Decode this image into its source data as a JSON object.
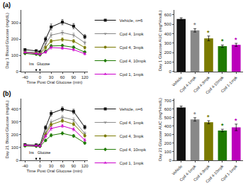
{
  "chart_data": [
    {
      "type": "line",
      "x_label": "Time Post Oral Glucose (min)",
      "y_label": "Day 1 Blood Glucose (mg/dL)",
      "x": [
        -40,
        -10,
        0,
        15,
        30,
        60,
        90,
        120
      ],
      "series": [
        {
          "name": "Vehicle, n=6",
          "color": "#111111",
          "marker": "square",
          "values": [
            135,
            128,
            122,
            200,
            275,
            305,
            280,
            215
          ],
          "errors": [
            6,
            6,
            6,
            14,
            18,
            16,
            16,
            13
          ]
        },
        {
          "name": "Cpd 4, 1mpk",
          "color": "#888888",
          "marker": "triangle-down",
          "values": [
            122,
            118,
            112,
            170,
            225,
            240,
            225,
            178
          ],
          "errors": [
            5,
            5,
            5,
            11,
            13,
            13,
            12,
            10
          ]
        },
        {
          "name": "Cpd 4, 3mpk",
          "color": "#7a7a00",
          "marker": "circle",
          "values": [
            118,
            113,
            108,
            148,
            188,
            198,
            188,
            148
          ],
          "errors": [
            5,
            5,
            5,
            9,
            11,
            11,
            10,
            9
          ]
        },
        {
          "name": "Cpd 4, 10mpk",
          "color": "#1e7a00",
          "marker": "diamond",
          "values": [
            112,
            107,
            103,
            125,
            158,
            160,
            150,
            120
          ],
          "errors": [
            4,
            4,
            4,
            7,
            9,
            9,
            8,
            7
          ]
        },
        {
          "name": "Cpd 1, 1mpk",
          "color": "#cc00cc",
          "marker": "triangle-up",
          "values": [
            118,
            112,
            107,
            120,
            148,
            145,
            135,
            110
          ],
          "errors": [
            4,
            4,
            4,
            7,
            9,
            8,
            8,
            7
          ]
        }
      ],
      "xlim": [
        -50,
        128
      ],
      "xticks": [
        -40,
        0,
        30,
        60,
        90,
        120
      ],
      "ylim": [
        0,
        380
      ],
      "yticks": [
        0,
        100,
        200,
        300
      ],
      "grid": false,
      "legend": "right",
      "annotations": [
        {
          "text": "(a)",
          "position": "top left"
        },
        {
          "text": "Ins",
          "x": -22,
          "y": 24
        },
        {
          "text": "Glucose",
          "x": 10,
          "y": 24
        }
      ],
      "arrows": [
        {
          "x": -10,
          "y": 2,
          "y_from": 22
        },
        {
          "x": 0,
          "y": 2,
          "y_from": 22
        }
      ]
    },
    {
      "type": "bar",
      "y_label": "Day 1 Glucose AUC (mg*HrxdL)",
      "categories": [
        "Vehicle",
        "Cpd 4-1mpk",
        "Cpd 4-3mpk",
        "Cpd 4-10mpk",
        "Cpd 1-1mpk"
      ],
      "values": [
        555,
        435,
        350,
        268,
        282
      ],
      "errors": [
        12,
        18,
        25,
        12,
        16
      ],
      "colors": [
        "#111111",
        "#888888",
        "#7a7a00",
        "#1e7a00",
        "#bb00bb"
      ],
      "ylim": [
        0,
        650
      ],
      "yticks": [
        0,
        100,
        200,
        300,
        400,
        500,
        600
      ],
      "grid": false,
      "annotations": [
        {
          "text": "*",
          "category": "Cpd 4-1mpk",
          "color": "#888888"
        },
        {
          "text": "*",
          "category": "Cpd 4-3mpk",
          "color": "#7a7a00"
        },
        {
          "text": "*",
          "category": "Cpd 4-10mpk",
          "color": "#1e7a00"
        },
        {
          "text": "*",
          "category": "Cpd 1-1mpk",
          "color": "#bb00bb"
        }
      ]
    },
    {
      "type": "line",
      "x_label": "Time Post Oral Glucose (min)",
      "y_label": "Day 21 Blood Glucose (mg/dL)",
      "x": [
        -40,
        -10,
        0,
        15,
        30,
        60,
        90,
        120
      ],
      "series": [
        {
          "name": "Vehicle, n=6",
          "color": "#111111",
          "marker": "square",
          "values": [
            122,
            120,
            118,
            255,
            365,
            398,
            380,
            258
          ],
          "errors": [
            6,
            6,
            6,
            16,
            20,
            18,
            18,
            15
          ]
        },
        {
          "name": "Cpd 4, 1mpk",
          "color": "#888888",
          "marker": "triangle-down",
          "values": [
            118,
            115,
            112,
            218,
            298,
            335,
            315,
            208
          ],
          "errors": [
            5,
            5,
            5,
            13,
            16,
            15,
            15,
            13
          ]
        },
        {
          "name": "Cpd 4, 3mpk",
          "color": "#7a7a00",
          "marker": "circle",
          "values": [
            115,
            112,
            110,
            202,
            278,
            308,
            282,
            192
          ],
          "errors": [
            5,
            5,
            5,
            11,
            14,
            13,
            13,
            11
          ]
        },
        {
          "name": "Cpd 4, 10mpk",
          "color": "#1e7a00",
          "marker": "diamond",
          "values": [
            112,
            110,
            108,
            155,
            195,
            210,
            190,
            135
          ],
          "errors": [
            4,
            4,
            4,
            9,
            12,
            11,
            11,
            9
          ]
        },
        {
          "name": "Cpd 1, 1mpk",
          "color": "#cc00cc",
          "marker": "triangle-up",
          "values": [
            118,
            115,
            110,
            188,
            248,
            268,
            242,
            158
          ],
          "errors": [
            4,
            4,
            4,
            11,
            14,
            12,
            12,
            10
          ]
        }
      ],
      "xlim": [
        -50,
        128
      ],
      "xticks": [
        -40,
        0,
        30,
        60,
        90,
        120
      ],
      "ylim": [
        0,
        480
      ],
      "yticks": [
        0,
        100,
        200,
        300,
        400
      ],
      "grid": false,
      "legend": "right",
      "annotations": [
        {
          "text": "(b)",
          "position": "top left"
        },
        {
          "text": "Ins",
          "x": -22,
          "y": 32
        },
        {
          "text": "Glucose",
          "x": 12,
          "y": 32
        }
      ],
      "arrows": [
        {
          "x": -10,
          "y": 2,
          "y_from": 28
        },
        {
          "x": 0,
          "y": 2,
          "y_from": 28
        }
      ]
    },
    {
      "type": "bar",
      "y_label": "Day 21 Glucose AUC (mg*HrxdL)",
      "categories": [
        "Vehicle",
        "Cpd 4-1mpk",
        "Cpd 4-3mpk",
        "Cpd 4-10mpk",
        "Cpd 1-1mpk"
      ],
      "values": [
        618,
        478,
        445,
        348,
        385
      ],
      "errors": [
        15,
        20,
        18,
        15,
        38
      ],
      "colors": [
        "#111111",
        "#888888",
        "#7a7a00",
        "#1e7a00",
        "#bb00bb"
      ],
      "ylim": [
        0,
        720
      ],
      "yticks": [
        0,
        100,
        200,
        300,
        400,
        500,
        600,
        700
      ],
      "grid": false,
      "annotations": [
        {
          "text": "*",
          "category": "Cpd 4-1mpk",
          "color": "#888888"
        },
        {
          "text": "*",
          "category": "Cpd 4-3mpk",
          "color": "#7a7a00"
        },
        {
          "text": "*",
          "category": "Cpd 4-10mpk",
          "color": "#1e7a00"
        },
        {
          "text": "*",
          "category": "Cpd 1-1mpk",
          "color": "#bb00bb"
        }
      ]
    }
  ]
}
